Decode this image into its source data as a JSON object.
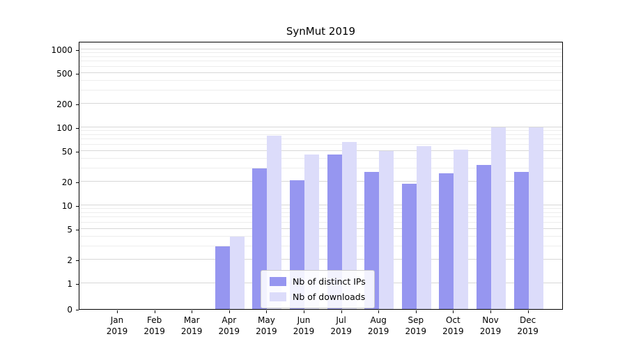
{
  "title": "SynMut 2019",
  "chart_data": {
    "type": "bar",
    "title": "SynMut 2019",
    "xlabel": "",
    "ylabel": "",
    "yscale": "symlog",
    "grid": true,
    "legend_position": "lower center",
    "ylim": [
      0,
      1300
    ],
    "y_ticks": [
      0,
      1,
      2,
      5,
      10,
      20,
      50,
      100,
      200,
      500,
      1000
    ],
    "categories": [
      "Jan 2019",
      "Feb 2019",
      "Mar 2019",
      "Apr 2019",
      "May 2019",
      "Jun 2019",
      "Jul 2019",
      "Aug 2019",
      "Sep 2019",
      "Oct 2019",
      "Nov 2019",
      "Dec 2019"
    ],
    "series": [
      {
        "name": "Nb of distinct IPs",
        "color": "#9696f0",
        "values": [
          0,
          0,
          0,
          3,
          30,
          21,
          45,
          27,
          19,
          26,
          33,
          27
        ]
      },
      {
        "name": "Nb of downloads",
        "color": "#dcdcfa",
        "values": [
          0,
          0,
          0,
          4,
          78,
          45,
          65,
          50,
          57,
          52,
          100,
          100
        ]
      }
    ]
  }
}
